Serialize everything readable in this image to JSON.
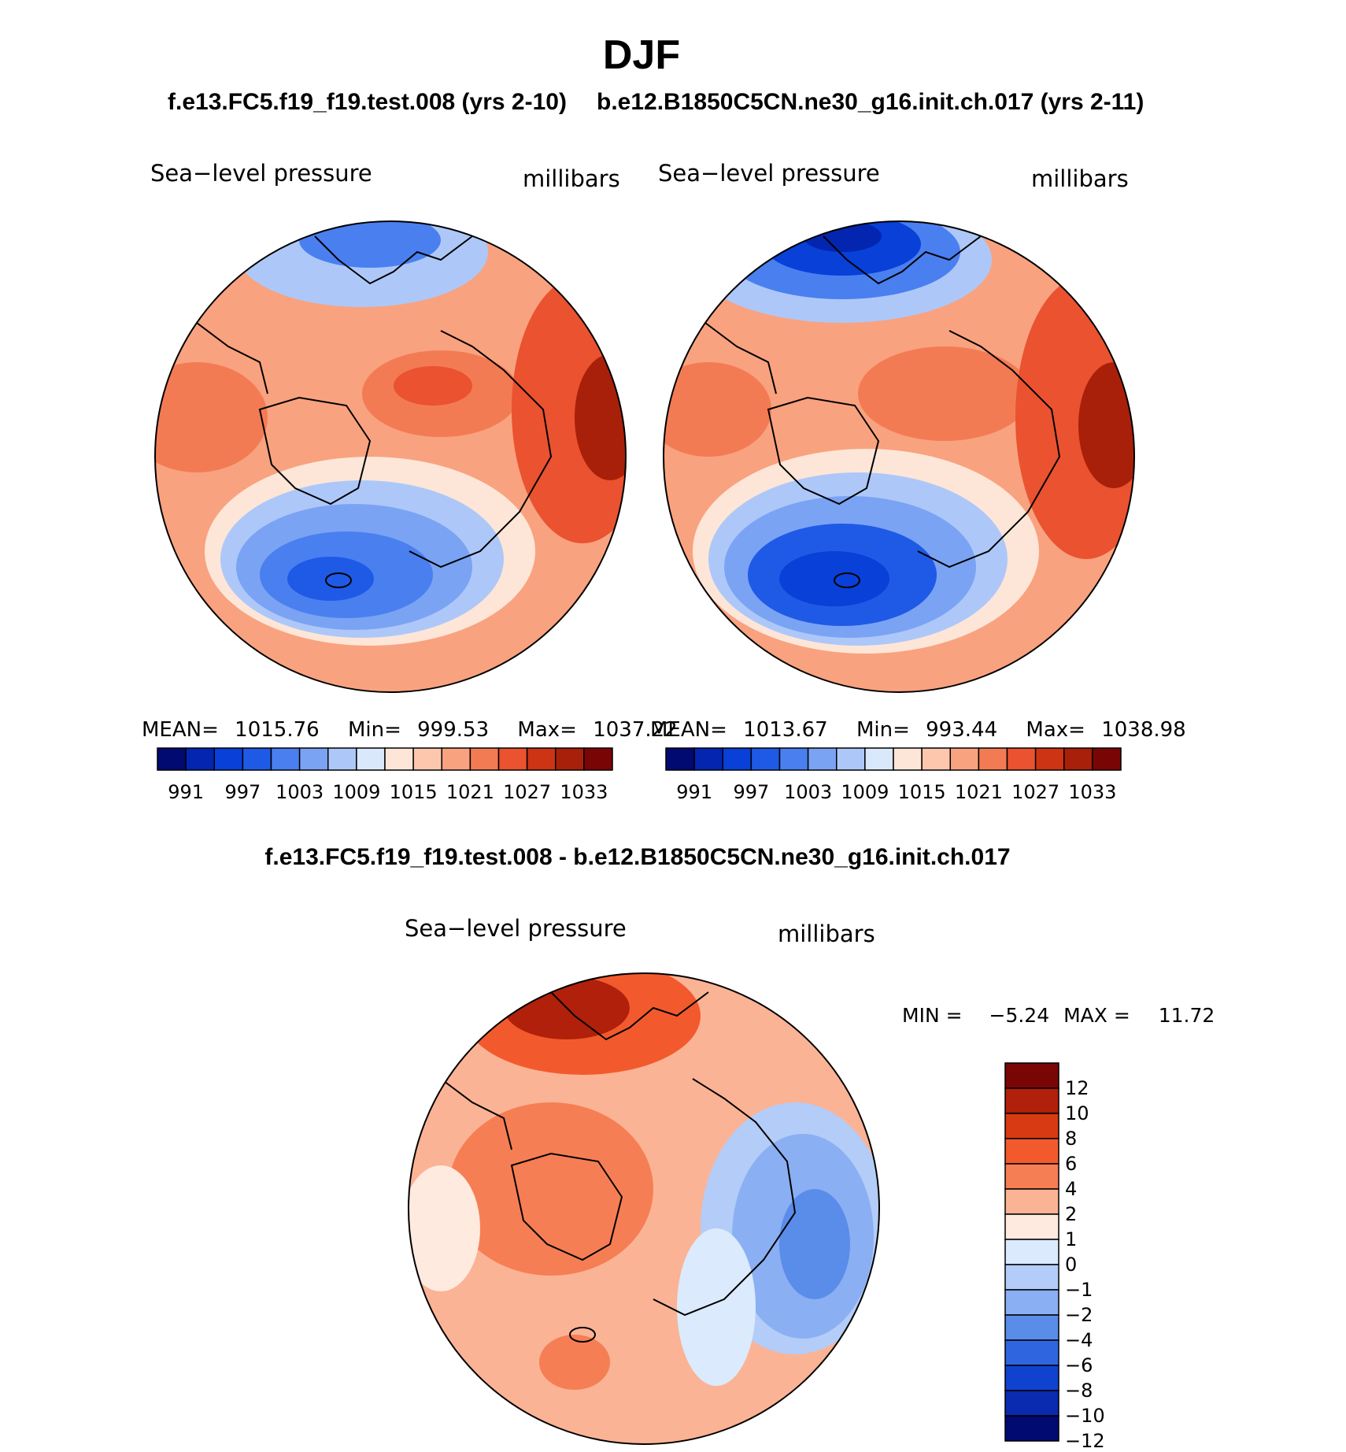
{
  "main_title": "DJF",
  "colors": {
    "cb_main": [
      "#000a70",
      "#0325b0",
      "#0840d8",
      "#1f5ae6",
      "#4a7ff0",
      "#7ba3f4",
      "#adc8f8",
      "#d9e8fb",
      "#fde6d8",
      "#fcc7ad",
      "#f9a27f",
      "#f37b53",
      "#ea5230",
      "#cc3414",
      "#a8200a",
      "#7a0505"
    ],
    "cb_diff": [
      "#7a0505",
      "#b0200a",
      "#d83a14",
      "#f25a2d",
      "#f67e54",
      "#fbb395",
      "#feeadf",
      "#dbeafc",
      "#b3ccf8",
      "#8aaff2",
      "#5a8cea",
      "#2f66e0",
      "#0f42ce",
      "#0a2ab0",
      "#000a70"
    ]
  },
  "chart_data": [
    {
      "type": "heatmap",
      "title": "f.e13.FC5.f19_f19.test.008 (yrs 2-10)",
      "left_label": "Sea−level pressure",
      "right_label": "millibars",
      "stats": {
        "mean_label": "MEAN=",
        "mean": "1015.76",
        "min_label": "Min=",
        "min": "999.53",
        "max_label": "Max=",
        "max": "1037.22"
      },
      "colorbar_levels": [
        "991",
        "997",
        "1003",
        "1009",
        "1015",
        "1021",
        "1027",
        "1033"
      ]
    },
    {
      "type": "heatmap",
      "title": "b.e12.B1850C5CN.ne30_g16.init.ch.017 (yrs 2-11)",
      "left_label": "Sea−level pressure",
      "right_label": "millibars",
      "stats": {
        "mean_label": "MEAN=",
        "mean": "1013.67",
        "min_label": "Min=",
        "min": "993.44",
        "max_label": "Max=",
        "max": "1038.98"
      },
      "colorbar_levels": [
        "991",
        "997",
        "1003",
        "1009",
        "1015",
        "1021",
        "1027",
        "1033"
      ]
    },
    {
      "type": "heatmap",
      "title": "f.e13.FC5.f19_f19.test.008 - b.e12.B1850C5CN.ne30_g16.init.ch.017",
      "left_label": "Sea−level pressure",
      "right_label": "millibars",
      "stats": {
        "min_label": "MIN =",
        "min": "−5.24",
        "max_label": "MAX =",
        "max": "11.72"
      },
      "colorbar_levels": [
        "12",
        "10",
        "8",
        "6",
        "4",
        "2",
        "1",
        "0",
        "−1",
        "−2",
        "−4",
        "−6",
        "−8",
        "−10",
        "−12"
      ]
    }
  ]
}
